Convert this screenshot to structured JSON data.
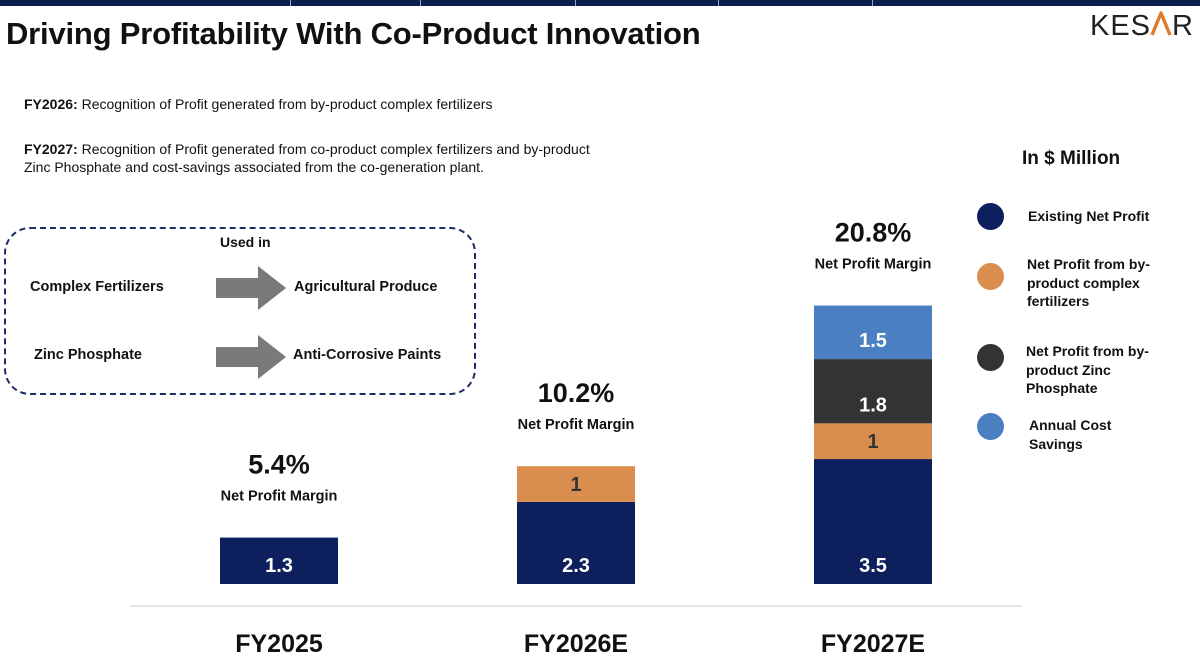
{
  "title": "Driving Profitability With Co-Product Innovation",
  "logo": {
    "text": "KESAR"
  },
  "notes": [
    {
      "label": "FY2026:",
      "text": " Recognition of Profit generated from by-product complex fertilizers"
    },
    {
      "label": "FY2027:",
      "text": " Recognition of Profit generated from co-product complex fertilizers and by-product Zinc Phosphate and cost-savings associated from the co-generation plant."
    }
  ],
  "usage": {
    "header": "Used in",
    "rows": [
      {
        "from": "Complex Fertilizers",
        "to": "Agricultural Produce"
      },
      {
        "from": "Zinc Phosphate",
        "to": "Anti-Corrosive Paints"
      }
    ]
  },
  "unit_label": "In $ Million",
  "colors": {
    "existing": "#0d1f5c",
    "complex": "#d98e4f",
    "zinc": "#333333",
    "savings": "#4a7fc1",
    "nav": "#0b1e4f",
    "logo_accent": "#e07a2c"
  },
  "chart_data": {
    "type": "bar",
    "stacked": true,
    "categories": [
      "FY2025",
      "FY2026E",
      "FY2027E"
    ],
    "series": [
      {
        "name": "Existing Net Profit",
        "color": "#0d1f5c",
        "values": [
          1.3,
          2.3,
          3.5
        ]
      },
      {
        "name": "Net Profit from by-product complex fertilizers",
        "color": "#d98e4f",
        "values": [
          null,
          1,
          1
        ]
      },
      {
        "name": "Net Profit from by-product Zinc Phosphate",
        "color": "#333333",
        "values": [
          null,
          null,
          1.8
        ]
      },
      {
        "name": "Annual Cost Savings",
        "color": "#4a7fc1",
        "values": [
          null,
          null,
          1.5
        ]
      }
    ],
    "margins": [
      {
        "value": "5.4%",
        "label": "Net Profit Margin"
      },
      {
        "value": "10.2%",
        "label": "Net Profit Margin"
      },
      {
        "value": "20.8%",
        "label": "Net Profit Margin"
      }
    ],
    "legend_position": "right",
    "grid": false
  }
}
